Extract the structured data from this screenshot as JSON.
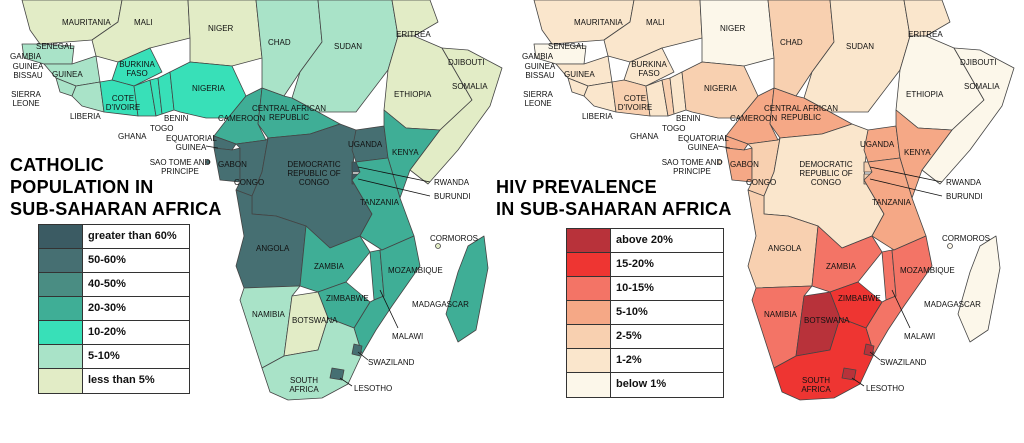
{
  "left_map": {
    "title": [
      "CATHOLIC",
      "POPULATION IN",
      "SUB-SAHARAN AFRICA"
    ],
    "legend": [
      {
        "label": "greater than 60%",
        "color": "#3b5b63"
      },
      {
        "label": "50-60%",
        "color": "#466f72"
      },
      {
        "label": "40-50%",
        "color": "#4a8d83"
      },
      {
        "label": "20-30%",
        "color": "#3fae96"
      },
      {
        "label": "10-20%",
        "color": "#38e0b8"
      },
      {
        "label": "5-10%",
        "color": "#a9e3c8"
      },
      {
        "label": "less than 5%",
        "color": "#e2ecc6"
      }
    ]
  },
  "right_map": {
    "title": [
      "HIV PREVALENCE",
      "IN SUB-SAHARAN AFRICA"
    ],
    "legend": [
      {
        "label": "above 20%",
        "color": "#b8323a"
      },
      {
        "label": "15-20%",
        "color": "#ee3532"
      },
      {
        "label": "10-15%",
        "color": "#f37466"
      },
      {
        "label": "5-10%",
        "color": "#f5a886"
      },
      {
        "label": "2-5%",
        "color": "#f8d0b0"
      },
      {
        "label": "1-2%",
        "color": "#fae6cc"
      },
      {
        "label": "below 1%",
        "color": "#fcf7ea"
      }
    ]
  },
  "countries": {
    "mauritania": "MAURITANIA",
    "mali": "MALI",
    "niger": "NIGER",
    "chad": "CHAD",
    "sudan": "SUDAN",
    "eritrea": "ERITREA",
    "djibouti": "DJIBOUTI",
    "somalia": "SOMALIA",
    "ethiopia": "ETHIOPIA",
    "senegal": "SENEGAL",
    "gambia": "GAMBIA",
    "guinea_bissau": "GUINEA BISSAU",
    "guinea": "GUINEA",
    "sierra_leone": "SIERRA LEONE",
    "liberia": "LIBERIA",
    "burkina_faso": "BURKINA FASO",
    "cote_divoire": "COTE D'IVOIRE",
    "ghana": "GHANA",
    "togo": "TOGO",
    "benin": "BENIN",
    "nigeria": "NIGERIA",
    "cameroon": "CAMEROON",
    "car": "CENTRAL AFRICAN REPUBLIC",
    "equatorial_guinea": "EQUATORIAL GUINEA",
    "sao_tome": "SAO TOME AND PRINCIPE",
    "gabon": "GABON",
    "congo": "CONGO",
    "drc": "DEMOCRATIC REPUBLIC OF CONGO",
    "uganda": "UGANDA",
    "kenya": "KENYA",
    "rwanda": "RWANDA",
    "burundi": "BURUNDI",
    "tanzania": "TANZANIA",
    "cormoros": "CORMOROS",
    "angola": "ANGOLA",
    "zambia": "ZAMBIA",
    "mozambique": "MOZAMBIQUE",
    "madagascar": "MADAGASCAR",
    "zimbabwe": "ZIMBABWE",
    "namibia": "NAMIBIA",
    "botswana": "BOTSWANA",
    "malawi": "MALAWI",
    "swaziland": "SWAZILAND",
    "south_africa": "SOUTH AFRICA",
    "lesotho": "LESOTHO"
  }
}
